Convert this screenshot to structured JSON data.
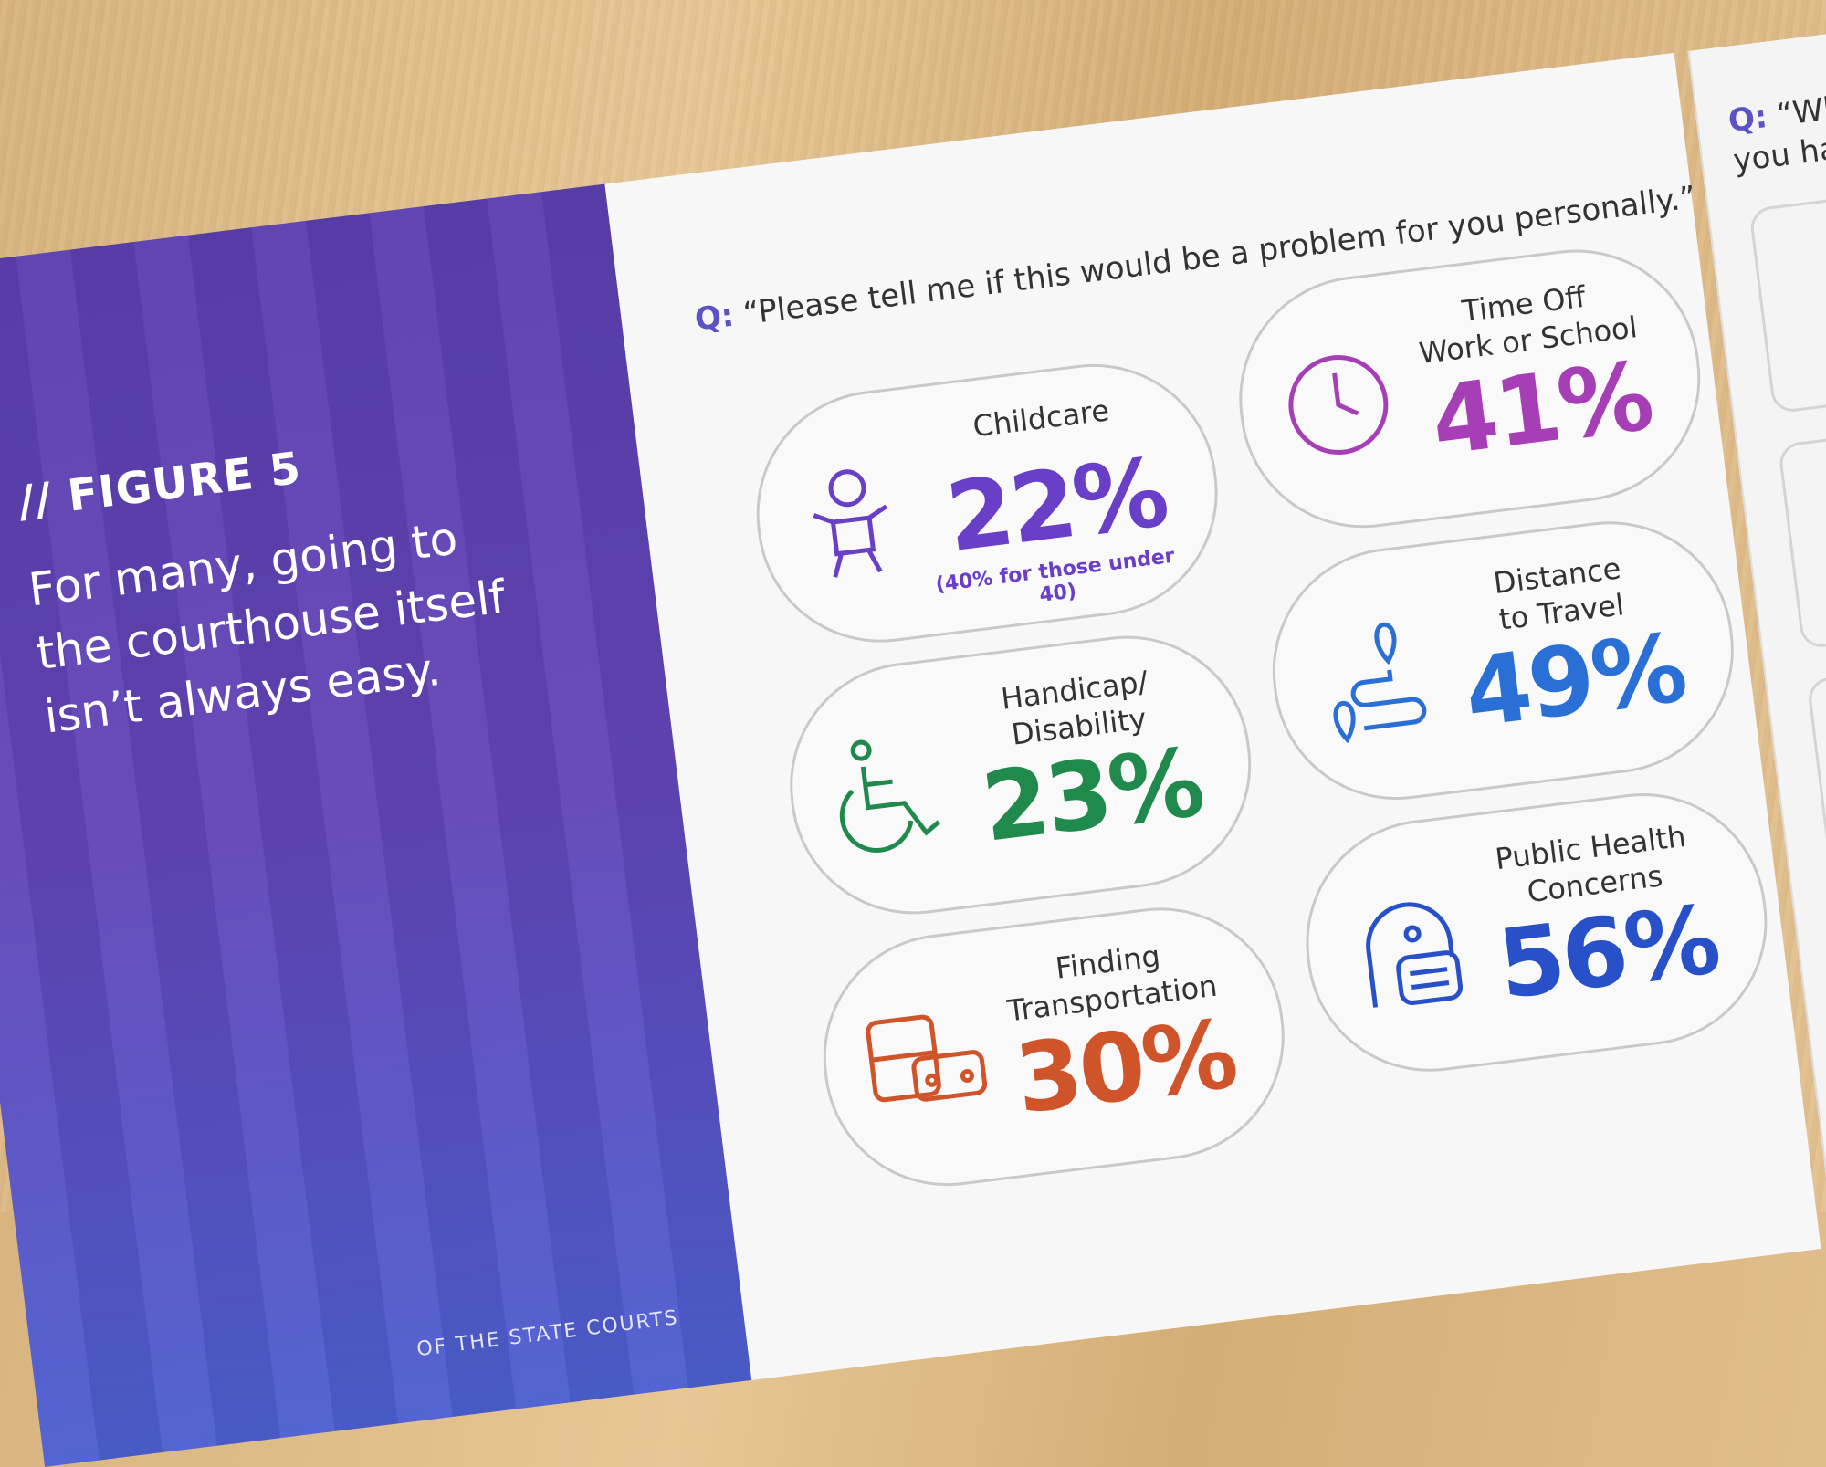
{
  "left_panel": {
    "figure_label": "// FIGURE 5",
    "heading": "For many, going to the courthouse itself isn’t always easy.",
    "footer": "OF THE STATE COURTS"
  },
  "question": {
    "prefix": "Q:",
    "text": "“Please tell me if this would be a problem for you personally.”"
  },
  "items": [
    {
      "label_lines": [
        "Childcare"
      ],
      "percent": "22%",
      "note": "(40% for those under 40)"
    },
    {
      "label_lines": [
        "Time Off",
        "Work or School"
      ],
      "percent": "41%"
    },
    {
      "label_lines": [
        "Handicap/",
        "Disability"
      ],
      "percent": "23%"
    },
    {
      "label_lines": [
        "Distance",
        "to Travel"
      ],
      "percent": "49%"
    },
    {
      "label_lines": [
        "Finding",
        "Transportation"
      ],
      "percent": "30%"
    },
    {
      "label_lines": [
        "Public Health",
        "Concerns"
      ],
      "percent": "56%"
    }
  ],
  "next_page": {
    "prefix": "Q:",
    "text_lines": [
      "“What inte",
      "you have a cel"
    ]
  }
}
